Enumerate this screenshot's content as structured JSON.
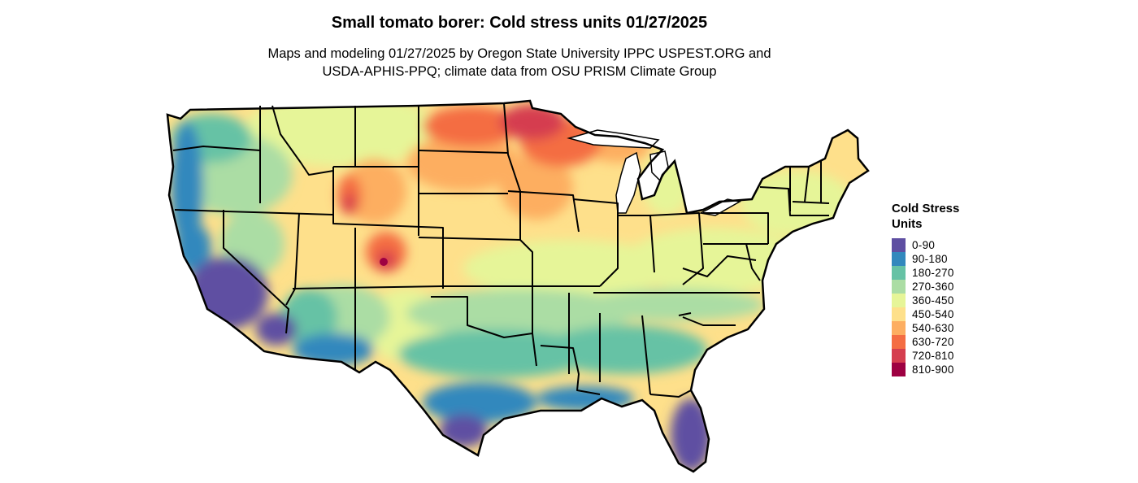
{
  "title": "Small tomato borer: Cold stress units 01/27/2025",
  "subtitle_lines": [
    "Maps and modeling 01/27/2025 by Oregon State University IPPC USPEST.ORG and",
    "USDA-APHIS-PPQ; climate data from OSU PRISM Climate Group"
  ],
  "legend": {
    "title_lines": [
      "Cold Stress",
      "Units"
    ],
    "items": [
      {
        "label": "0-90",
        "color": "#5e4fa2"
      },
      {
        "label": "90-180",
        "color": "#3288bd"
      },
      {
        "label": "180-270",
        "color": "#66c2a5"
      },
      {
        "label": "270-360",
        "color": "#abdda4"
      },
      {
        "label": "360-450",
        "color": "#e6f598"
      },
      {
        "label": "450-540",
        "color": "#fee08b"
      },
      {
        "label": "540-630",
        "color": "#fdae61"
      },
      {
        "label": "630-720",
        "color": "#f46d43"
      },
      {
        "label": "720-810",
        "color": "#d53e4f"
      },
      {
        "label": "810-900",
        "color": "#9e0142"
      }
    ]
  }
}
